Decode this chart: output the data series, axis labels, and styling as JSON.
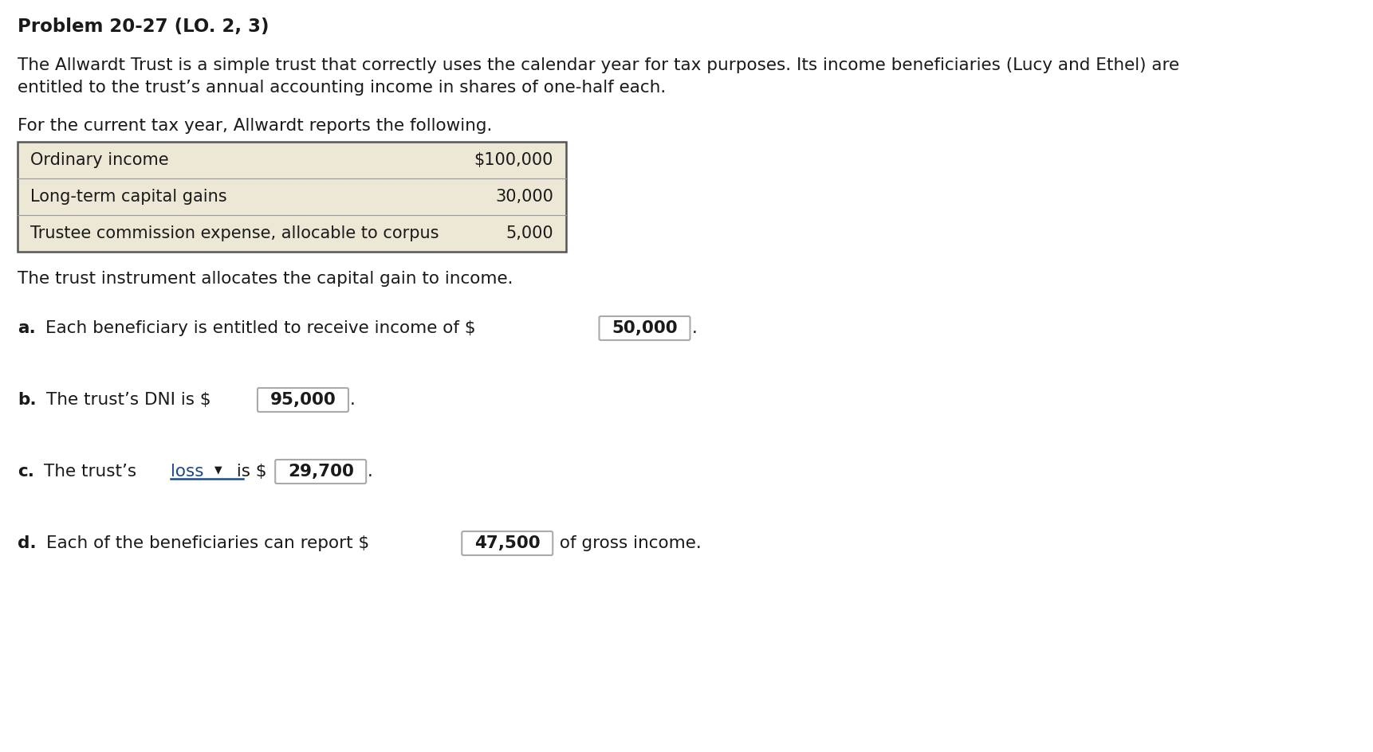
{
  "title": "Problem 20-27 (LO. 2, 3)",
  "para1": "The Allwardt Trust is a simple trust that correctly uses the calendar year for tax purposes. Its income beneficiaries (Lucy and Ethel) are",
  "para1b": "entitled to the trust’s annual accounting income in shares of one-half each.",
  "para2": "For the current tax year, Allwardt reports the following.",
  "table_rows": [
    {
      "label": "Ordinary income",
      "value": "$100,000"
    },
    {
      "label": "Long-term capital gains",
      "value": "30,000"
    },
    {
      "label": "Trustee commission expense, allocable to corpus",
      "value": "5,000"
    }
  ],
  "table_bg": "#ede8d5",
  "para3": "The trust instrument allocates the capital gain to income.",
  "qa_label": "a.",
  "qa_prefix": "Each beneficiary is entitled to receive income of $",
  "qa_value": "50,000",
  "qb_label": "b.",
  "qb_prefix": "The trust’s DNI is $",
  "qb_value": "95,000",
  "qc_label": "c.",
  "qc_prefix": "The trust’s ",
  "qc_dropdown": "loss",
  "qc_mid": " is $",
  "qc_value": "29,700",
  "qd_label": "d.",
  "qd_prefix": "Each of the beneficiaries can report $",
  "qd_value": "47,500",
  "qd_suffix": " of gross income.",
  "bg_color": "#ffffff",
  "text_color": "#1a1a1a",
  "dropdown_color": "#1a4a8a",
  "box_edge_color": "#aaaaaa",
  "table_edge_color": "#555555",
  "font_size": 15.5,
  "title_font_size": 16.5,
  "table_font_size": 15.0
}
